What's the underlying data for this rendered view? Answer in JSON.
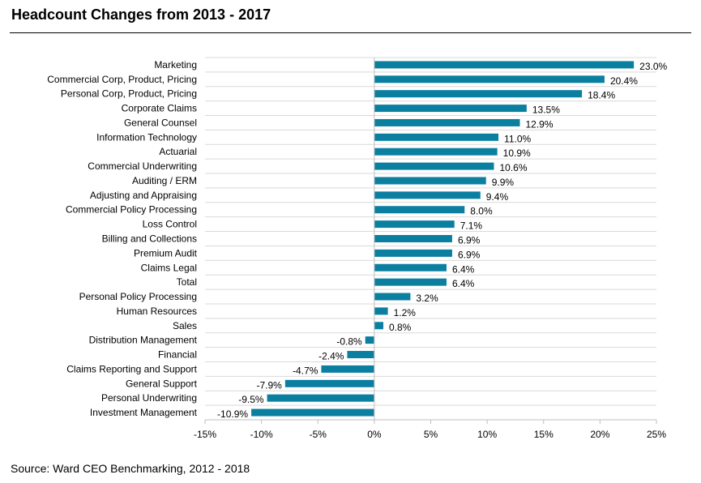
{
  "title": "Headcount Changes from 2013 - 2017",
  "source": "Source: Ward CEO Benchmarking, 2012 - 2018",
  "chart_data": {
    "type": "bar",
    "orientation": "horizontal",
    "categories": [
      "Marketing",
      "Commercial Corp, Product, Pricing",
      "Personal Corp, Product, Pricing",
      "Corporate Claims",
      "General Counsel",
      "Information Technology",
      "Actuarial",
      "Commercial Underwriting",
      "Auditing / ERM",
      "Adjusting and Appraising",
      "Commercial Policy Processing",
      "Loss Control",
      "Billing and Collections",
      "Premium Audit",
      "Claims Legal",
      "Total",
      "Personal Policy Processing",
      "Human Resources",
      "Sales",
      "Distribution Management",
      "Financial",
      "Claims Reporting and Support",
      "General Support",
      "Personal Underwriting",
      "Investment Management"
    ],
    "values": [
      23.0,
      20.4,
      18.4,
      13.5,
      12.9,
      11.0,
      10.9,
      10.6,
      9.9,
      9.4,
      8.0,
      7.1,
      6.9,
      6.9,
      6.4,
      6.4,
      3.2,
      1.2,
      0.8,
      -0.8,
      -2.4,
      -4.7,
      -7.9,
      -9.5,
      -10.9
    ],
    "value_labels": [
      "23.0%",
      "20.4%",
      "18.4%",
      "13.5%",
      "12.9%",
      "11.0%",
      "10.9%",
      "10.6%",
      "9.9%",
      "9.4%",
      "8.0%",
      "7.1%",
      "6.9%",
      "6.9%",
      "6.4%",
      "6.4%",
      "3.2%",
      "1.2%",
      "0.8%",
      "-0.8%",
      "-2.4%",
      "-4.7%",
      "-7.9%",
      "-9.5%",
      "-10.9%"
    ],
    "xlim": [
      -15,
      25
    ],
    "xticks": [
      -15,
      -10,
      -5,
      0,
      5,
      10,
      15,
      20,
      25
    ],
    "xtick_labels": [
      "-15%",
      "-10%",
      "-5%",
      "0%",
      "5%",
      "10%",
      "15%",
      "20%",
      "25%"
    ],
    "grid": "horizontal",
    "legend": "none",
    "bar_color": "#0B7FA0",
    "grid_color": "#D9D9D9",
    "axis_color": "#BFBFBF"
  }
}
